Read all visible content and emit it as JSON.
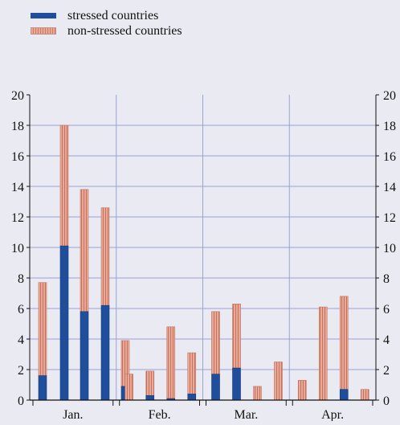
{
  "chart_data": {
    "type": "bar",
    "stacked": true,
    "series": [
      {
        "name": "stressed countries",
        "color": "#1f4e9c",
        "values": [
          1.6,
          10.1,
          5.8,
          6.2,
          0.9,
          0,
          0.3,
          0.1,
          0.4,
          1.7,
          2.1,
          0,
          0,
          0,
          0,
          0.7,
          0
        ]
      },
      {
        "name": "non-stressed countries",
        "color": "#e9a996",
        "values": [
          6.1,
          7.9,
          8.0,
          6.4,
          3.0,
          1.7,
          1.6,
          4.7,
          2.7,
          4.1,
          4.2,
          0.9,
          2.5,
          1.3,
          6.1,
          6.1,
          0.7
        ]
      }
    ],
    "groups": [
      {
        "label": "Jan.",
        "count": 5
      },
      {
        "label": "Feb.",
        "count": 4
      },
      {
        "label": "Mar.",
        "count": 4
      },
      {
        "label": "Apr.",
        "count": 4
      }
    ],
    "yticks": [
      0,
      2,
      4,
      6,
      8,
      10,
      12,
      14,
      16,
      18,
      20
    ],
    "ylim": [
      0,
      20
    ],
    "grid": true,
    "legend_position": "top-left",
    "title": "",
    "xlabel": "",
    "ylabel": ""
  }
}
